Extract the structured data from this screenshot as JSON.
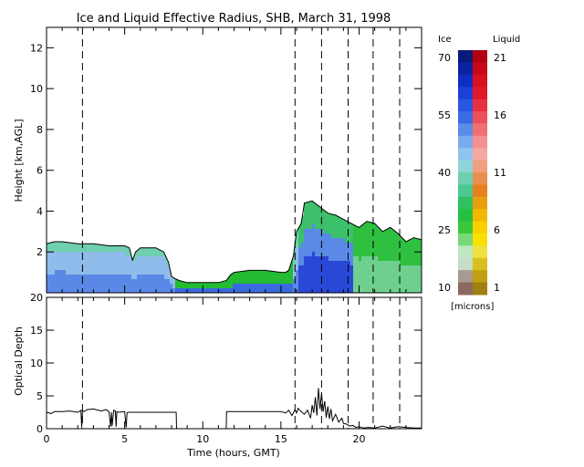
{
  "chart_data": [
    {
      "type": "heatmap",
      "title": "Ice and Liquid Effective Radius, SHB, March 31, 1998",
      "xlabel": "",
      "ylabel": "Height [km,AGL]",
      "xlim": [
        0,
        24
      ],
      "ylim": [
        0,
        13
      ],
      "x_ticks": [
        "0",
        "5",
        "10",
        "15",
        "20"
      ],
      "x_tick_values": [
        0,
        5,
        10,
        15,
        20
      ],
      "y_ticks": [
        "2",
        "4",
        "6",
        "8",
        "10",
        "12"
      ],
      "y_tick_values": [
        2,
        4,
        6,
        8,
        10,
        12
      ],
      "dashed_time_markers": [
        2.3,
        15.9,
        17.6,
        19.3,
        20.9,
        22.6
      ],
      "cloud_top_km": {
        "x": [
          0,
          0.5,
          1,
          2,
          3,
          4,
          5,
          5.3,
          5.5,
          5.7,
          6,
          7,
          7.5,
          7.8,
          8,
          8.2,
          8.5,
          9,
          10,
          11,
          11.5,
          11.8,
          12,
          13,
          14,
          15,
          15.3,
          15.5,
          15.8,
          16,
          16.3,
          16.5,
          17,
          17.5,
          18,
          18.5,
          19,
          19.5,
          20,
          20.5,
          21,
          21.5,
          22,
          22.5,
          23,
          23.5,
          24
        ],
        "y": [
          2.4,
          2.5,
          2.5,
          2.4,
          2.4,
          2.3,
          2.3,
          2.2,
          1.6,
          2.0,
          2.2,
          2.2,
          2.0,
          1.5,
          0.8,
          0.7,
          0.6,
          0.5,
          0.5,
          0.5,
          0.6,
          0.9,
          1.0,
          1.1,
          1.1,
          1.0,
          1.0,
          1.1,
          1.8,
          3.0,
          3.4,
          4.4,
          4.5,
          4.2,
          3.9,
          3.8,
          3.6,
          3.4,
          3.2,
          3.5,
          3.4,
          3.0,
          3.2,
          2.9,
          2.5,
          2.7,
          2.6
        ]
      },
      "colorbar": {
        "ice_label": "Ice",
        "liquid_label": "Liquid",
        "unit_label": "[microns]",
        "ice_ticks": [
          "70",
          "55",
          "40",
          "25",
          "10"
        ],
        "liquid_ticks": [
          "21",
          "16",
          "11",
          "6",
          "1"
        ],
        "ice_colors": [
          "#0a1a7a",
          "#0c22a0",
          "#0f2fc0",
          "#1a40d8",
          "#2a55e0",
          "#3a6ae4",
          "#5a8ce8",
          "#7aaaee",
          "#8fc4ee",
          "#8fd4d8",
          "#6fcfb0",
          "#4cc890",
          "#30c060",
          "#25c040",
          "#3cc83c",
          "#78d878",
          "#bfe8bf",
          "#c8dcc8",
          "#a89a90",
          "#8a6a60"
        ],
        "liquid_colors": [
          "#b00010",
          "#c80818",
          "#d81020",
          "#e01828",
          "#e83040",
          "#ec5058",
          "#f07070",
          "#f49090",
          "#f5a8a0",
          "#f0a080",
          "#e89050",
          "#e88020",
          "#e8a010",
          "#f0b800",
          "#f8d000",
          "#f8e000",
          "#f0e040",
          "#d8c020",
          "#c0a010",
          "#a08010"
        ]
      }
    },
    {
      "type": "line",
      "title": "",
      "xlabel": "Time (hours, GMT)",
      "ylabel": "Optical Depth",
      "xlim": [
        0,
        24
      ],
      "ylim": [
        0,
        20
      ],
      "x_ticks": [
        "0",
        "5",
        "10",
        "15",
        "20"
      ],
      "x_tick_values": [
        0,
        5,
        10,
        15,
        20
      ],
      "y_ticks": [
        "0",
        "5",
        "10",
        "15",
        "20"
      ],
      "y_tick_values": [
        0,
        5,
        10,
        15,
        20
      ],
      "dashed_time_markers": [
        2.3,
        15.9,
        17.6,
        19.3,
        20.9,
        22.6
      ],
      "series": [
        {
          "name": "",
          "x": [
            0,
            0.3,
            0.5,
            1.0,
            1.5,
            2.0,
            2.2,
            2.25,
            2.3,
            2.4,
            2.6,
            3.0,
            3.5,
            3.8,
            4.0,
            4.1,
            4.15,
            4.2,
            4.3,
            4.4,
            4.45,
            4.5,
            4.6,
            5.0,
            5.1,
            5.15,
            5.2,
            5.4,
            6.0,
            7.0,
            8.0,
            8.3,
            8.32,
            11.5,
            11.52,
            12.0,
            13.0,
            14.0,
            15.0,
            15.3,
            15.5,
            15.7,
            15.9,
            16.0,
            16.1,
            16.3,
            16.5,
            16.7,
            16.9,
            17.0,
            17.1,
            17.2,
            17.3,
            17.4,
            17.5,
            17.6,
            17.7,
            17.8,
            17.9,
            18.0,
            18.1,
            18.2,
            18.3,
            18.5,
            18.7,
            18.9,
            19.0,
            19.2,
            19.4,
            19.6,
            19.8,
            20.0,
            20.3,
            20.6,
            21.0,
            21.5,
            22.0,
            22.5,
            23.0,
            23.5,
            24.0
          ],
          "y": [
            2.5,
            2.3,
            2.6,
            2.6,
            2.7,
            2.5,
            2.8,
            0.2,
            2.8,
            2.6,
            2.9,
            3.0,
            2.7,
            2.9,
            2.6,
            0.3,
            2.5,
            0.4,
            2.8,
            2.7,
            0.3,
            2.6,
            2.5,
            2.6,
            0.2,
            2.4,
            2.5,
            2.5,
            2.5,
            2.5,
            2.5,
            2.5,
            0.0,
            0.0,
            2.6,
            2.6,
            2.6,
            2.6,
            2.6,
            2.4,
            2.8,
            2.0,
            2.9,
            2.4,
            3.1,
            2.6,
            2.2,
            2.8,
            1.6,
            3.6,
            2.4,
            4.8,
            2.0,
            6.2,
            3.0,
            5.4,
            2.6,
            4.2,
            1.7,
            3.4,
            1.5,
            3.0,
            1.2,
            2.2,
            1.0,
            1.6,
            0.8,
            0.7,
            0.4,
            0.5,
            0.2,
            0.3,
            0.1,
            0.2,
            0.1,
            0.4,
            0.1,
            0.3,
            0.2,
            0.1,
            0.1
          ]
        }
      ]
    }
  ]
}
